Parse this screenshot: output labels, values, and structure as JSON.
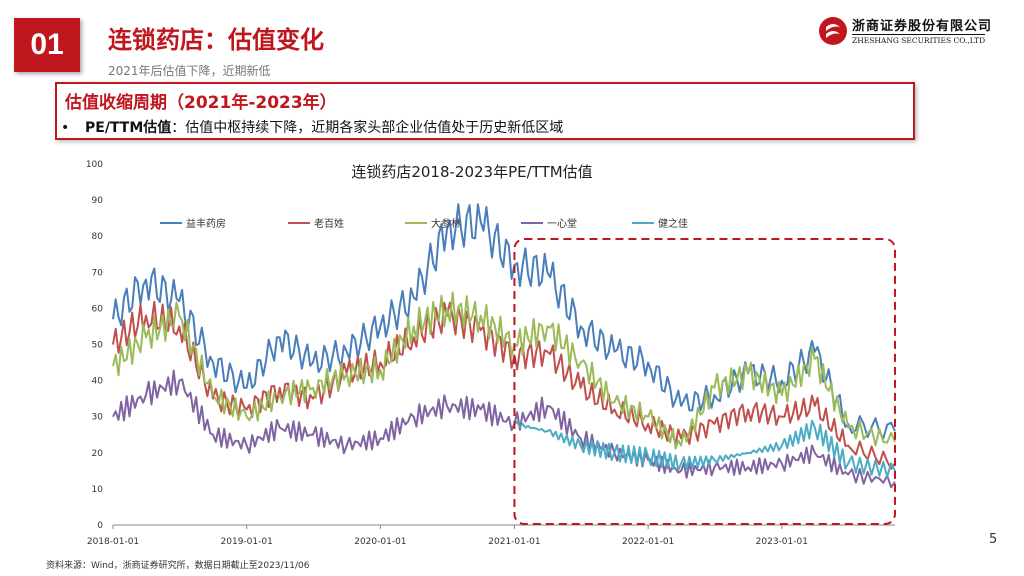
{
  "header": {
    "section_number": "01",
    "title": "连锁药店：估值变化",
    "subtitle": "2021年后估值下降，近期新低"
  },
  "logo": {
    "name": "浙商证券股份有限公司",
    "english": "ZHESHANG SECURITIES CO.,LTD"
  },
  "callout": {
    "heading": "估值收缩周期（2021年-2023年）",
    "bullet_mark": "•",
    "bullet_label": "PE/TTM估值",
    "bullet_text": "：估值中枢持续下降，近期各家头部企业估值处于历史新低区域"
  },
  "footer": {
    "source": "资料来源：Wind，浙商证券研究所，数据日期截止至2023/11/06",
    "page_number": "5"
  },
  "chart_data": {
    "type": "line",
    "title": "连锁药店2018-2023年PE/TTM估值",
    "xlabel": "",
    "ylabel": "",
    "ylim": [
      0,
      100
    ],
    "yticks": [
      "0",
      "10",
      "20",
      "30",
      "40",
      "50",
      "60",
      "70",
      "80",
      "90",
      "100"
    ],
    "xticks": [
      "2018-01-01",
      "2019-01-01",
      "2020-01-01",
      "2021-01-01",
      "2022-01-01",
      "2023-01-01"
    ],
    "x_start": "2018-01-01",
    "x_end": "2023-11-06",
    "highlight_range": [
      "2021-01-01",
      "2023-11-06"
    ],
    "grid": false,
    "legend_position": "top",
    "x": [
      "2018-01",
      "2018-04",
      "2018-07",
      "2018-10",
      "2019-01",
      "2019-04",
      "2019-07",
      "2019-10",
      "2020-01",
      "2020-04",
      "2020-07",
      "2020-10",
      "2021-01",
      "2021-04",
      "2021-07",
      "2021-10",
      "2022-01",
      "2022-04",
      "2022-07",
      "2022-10",
      "2023-01",
      "2023-04",
      "2023-07",
      "2023-10"
    ],
    "series": [
      {
        "name": "益丰药房",
        "color": "#4a7ebb",
        "values": [
          57,
          68,
          62,
          45,
          38,
          52,
          45,
          48,
          55,
          63,
          82,
          84,
          72,
          70,
          55,
          48,
          45,
          33,
          36,
          42,
          40,
          48,
          28,
          26
        ]
      },
      {
        "name": "老百姓",
        "color": "#c0504d",
        "values": [
          50,
          58,
          55,
          35,
          32,
          38,
          35,
          42,
          45,
          52,
          58,
          54,
          47,
          48,
          38,
          32,
          28,
          24,
          28,
          32,
          30,
          33,
          22,
          17
        ]
      },
      {
        "name": "大参林",
        "color": "#9bbb59",
        "values": [
          44,
          52,
          58,
          36,
          30,
          36,
          38,
          42,
          43,
          55,
          60,
          58,
          50,
          55,
          45,
          34,
          30,
          22,
          38,
          42,
          36,
          46,
          27,
          23
        ]
      },
      {
        "name": "一心堂",
        "color": "#8064a2",
        "values": [
          30,
          36,
          40,
          25,
          22,
          27,
          25,
          22,
          24,
          30,
          33,
          32,
          28,
          33,
          24,
          20,
          18,
          15,
          16,
          16,
          17,
          20,
          14,
          12
        ]
      },
      {
        "name": "健之佳",
        "color": "#4bacc6",
        "values": [
          null,
          null,
          null,
          null,
          null,
          null,
          null,
          null,
          null,
          null,
          null,
          null,
          28,
          26,
          22,
          20,
          19,
          17,
          18,
          20,
          22,
          27,
          17,
          15
        ]
      }
    ]
  }
}
